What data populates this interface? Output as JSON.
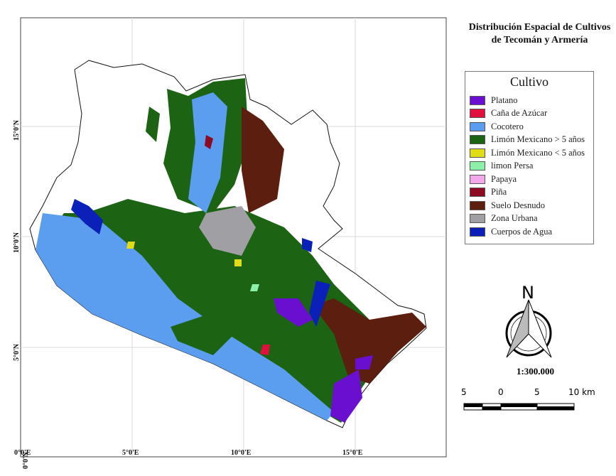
{
  "title": "Distribución Espacial de Cultivos de Tecomán y Armería",
  "legend": {
    "title": "Cultivo",
    "items": [
      {
        "label": "Platano",
        "color": "#6a0fd0"
      },
      {
        "label": "Caña de Azúcar",
        "color": "#e0103c"
      },
      {
        "label": "Cocotero",
        "color": "#5b9ef0"
      },
      {
        "label": "Limón Mexicano > 5 años",
        "color": "#1c6414"
      },
      {
        "label": "Limón Mexicano < 5 años",
        "color": "#e0dc18"
      },
      {
        "label": "limon Persa",
        "color": "#8cf0a8"
      },
      {
        "label": "Papaya",
        "color": "#f4a8ec"
      },
      {
        "label": "Piña",
        "color": "#8c0a22"
      },
      {
        "label": "Suelo Desnudo",
        "color": "#5c1e0e"
      },
      {
        "label": "Zona Urbana",
        "color": "#a0a0a4"
      },
      {
        "label": "Cuerpos de Agua",
        "color": "#0a20b8"
      }
    ]
  },
  "north_arrow": {
    "label": "N"
  },
  "scale": {
    "ratio": "1:300.000",
    "bar_labels": [
      "5",
      "0",
      "5",
      "10 km"
    ]
  },
  "grid": {
    "x_labels": [
      "0°0'E",
      "5°0'E",
      "10°0'E",
      "15°0'E"
    ],
    "y_labels": [
      "0°0'N",
      "5°0'N",
      "10°0'N",
      "15°0'N"
    ]
  }
}
